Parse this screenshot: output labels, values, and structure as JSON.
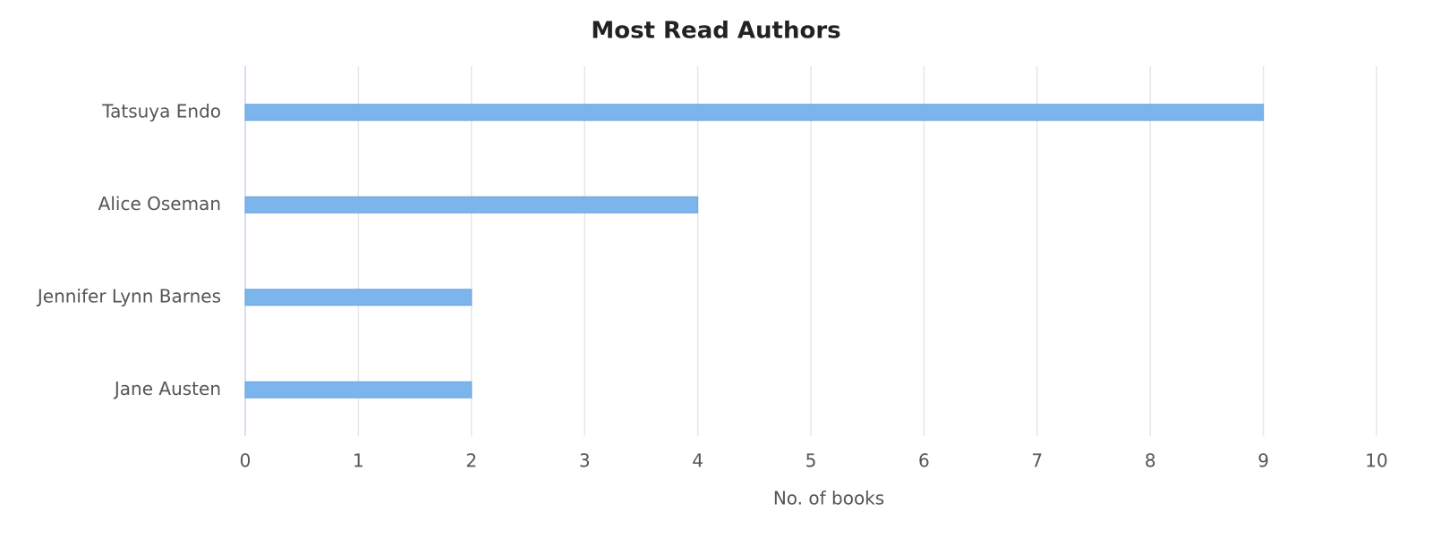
{
  "chart_data": {
    "type": "bar",
    "orientation": "horizontal",
    "title": "Most Read Authors",
    "categories": [
      "Tatsuya Endo",
      "Alice Oseman",
      "Jennifer Lynn Barnes",
      "Jane Austen"
    ],
    "values": [
      9,
      4,
      2,
      2
    ],
    "color": "#7cb5ec",
    "xlabel": "No. of books",
    "xlim": [
      0,
      10
    ],
    "xticks": [
      0,
      1,
      2,
      3,
      4,
      5,
      6,
      7,
      8,
      9,
      10
    ],
    "grid": true
  }
}
